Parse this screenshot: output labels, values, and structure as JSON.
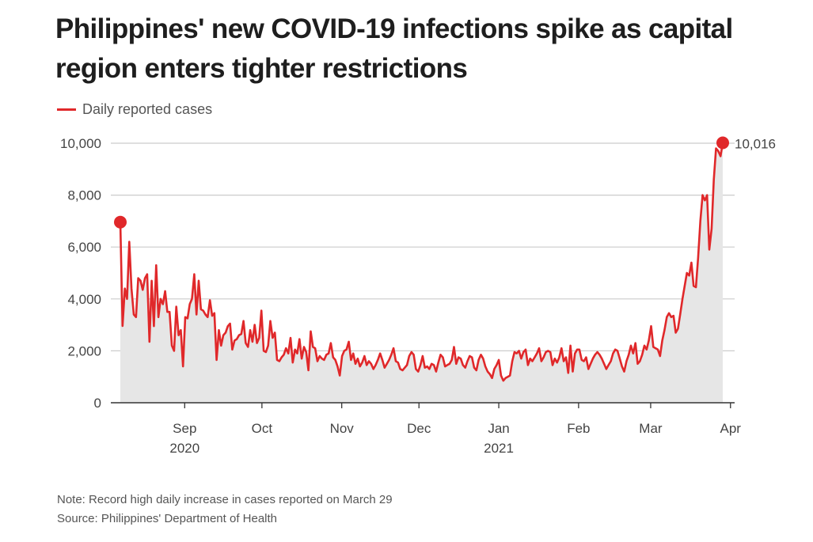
{
  "title": "Philippines' new COVID-19 infections spike as capital region enters tighter restrictions",
  "legend": {
    "label": "Daily reported cases",
    "color": "#e0282a"
  },
  "footer": {
    "note": "Note: Record high daily increase in cases reported on March 29",
    "source": "Source: Philippines' Department of Health"
  },
  "chart_data": {
    "type": "area",
    "title": "Philippines' new COVID-19 infections spike as capital region enters tighter restrictions",
    "xlabel": "",
    "ylabel": "",
    "x_start": "2020-08-07",
    "x_end": "2021-03-29",
    "ylim": [
      0,
      10000
    ],
    "yticks": [
      0,
      2000,
      4000,
      6000,
      8000,
      10000
    ],
    "ytick_labels": [
      "0",
      "2,000",
      "4,000",
      "6,000",
      "8,000",
      "10,000"
    ],
    "xticks": [
      {
        "date": "2020-09-01",
        "label": "Sep",
        "sublabel": "2020"
      },
      {
        "date": "2020-10-01",
        "label": "Oct",
        "sublabel": ""
      },
      {
        "date": "2020-11-01",
        "label": "Nov",
        "sublabel": ""
      },
      {
        "date": "2020-12-01",
        "label": "Dec",
        "sublabel": ""
      },
      {
        "date": "2021-01-01",
        "label": "Jan",
        "sublabel": "2021"
      },
      {
        "date": "2021-02-01",
        "label": "Feb",
        "sublabel": ""
      },
      {
        "date": "2021-03-01",
        "label": "Mar",
        "sublabel": ""
      },
      {
        "date": "2021-04-01",
        "label": "Apr",
        "sublabel": ""
      }
    ],
    "grid": true,
    "legend_position": "top-left",
    "colors": {
      "line": "#e0282a",
      "fill": "#e6e6e6",
      "grid": "#cccccc",
      "axis": "#333333"
    },
    "annotations": [
      {
        "date": "2020-08-07",
        "value": 6958,
        "marker": "dot",
        "label": ""
      },
      {
        "date": "2021-03-29",
        "value": 10016,
        "marker": "dot",
        "label": "10,016"
      }
    ],
    "series": [
      {
        "name": "Daily reported cases",
        "values": [
          6958,
          2960,
          4400,
          4000,
          6200,
          4400,
          3400,
          3300,
          4800,
          4700,
          4350,
          4800,
          4950,
          2350,
          4700,
          2950,
          5300,
          3300,
          4000,
          3800,
          4300,
          3500,
          3500,
          2200,
          2000,
          3700,
          2600,
          2800,
          1400,
          3300,
          3250,
          3800,
          4000,
          4950,
          3400,
          4700,
          3600,
          3550,
          3400,
          3300,
          3950,
          3350,
          3450,
          1650,
          2800,
          2200,
          2600,
          2700,
          2950,
          3050,
          2050,
          2400,
          2450,
          2600,
          2650,
          3150,
          2300,
          2150,
          2800,
          2350,
          3000,
          2300,
          2500,
          3550,
          2000,
          1950,
          2200,
          3150,
          2500,
          2700,
          1650,
          1600,
          1750,
          1850,
          2100,
          1900,
          2500,
          1550,
          2050,
          1900,
          2450,
          1700,
          2150,
          1950,
          1250,
          2750,
          2150,
          2100,
          1600,
          1800,
          1700,
          1650,
          1850,
          1900,
          2300,
          1750,
          1650,
          1400,
          1050,
          1800,
          2000,
          2050,
          2350,
          1650,
          1900,
          1500,
          1700,
          1400,
          1550,
          1800,
          1450,
          1600,
          1500,
          1300,
          1450,
          1650,
          1900,
          1650,
          1350,
          1500,
          1650,
          1850,
          2100,
          1600,
          1550,
          1300,
          1250,
          1350,
          1450,
          1800,
          1950,
          1850,
          1300,
          1200,
          1450,
          1800,
          1350,
          1400,
          1300,
          1500,
          1450,
          1200,
          1550,
          1850,
          1750,
          1400,
          1450,
          1500,
          1650,
          2150,
          1500,
          1750,
          1700,
          1450,
          1350,
          1600,
          1800,
          1750,
          1350,
          1250,
          1650,
          1850,
          1700,
          1400,
          1200,
          1100,
          950,
          1300,
          1450,
          1650,
          1050,
          850,
          950,
          1000,
          1050,
          1600,
          1950,
          1900,
          2000,
          1700,
          1950,
          2050,
          1450,
          1700,
          1600,
          1750,
          1900,
          2100,
          1600,
          1750,
          1950,
          2000,
          1950,
          1450,
          1700,
          1550,
          1750,
          2100,
          1600,
          1750,
          1150,
          2200,
          1200,
          1900,
          2050,
          2050,
          1650,
          1600,
          1750,
          1300,
          1500,
          1700,
          1850,
          1950,
          1850,
          1700,
          1500,
          1300,
          1450,
          1600,
          1900,
          2050,
          2000,
          1700,
          1400,
          1200,
          1600,
          1850,
          2200,
          1900,
          2300,
          1500,
          1600,
          1850,
          2200,
          2050,
          2400,
          2950,
          2150,
          2100,
          2050,
          1800,
          2400,
          2800,
          3300,
          3450,
          3300,
          3350,
          2700,
          2850,
          3400,
          4000,
          4500,
          5000,
          4900,
          5400,
          4500,
          4450,
          5600,
          7000,
          8000,
          7800,
          8000,
          5900,
          6700,
          8600,
          9800,
          9700,
          9500,
          10016
        ]
      }
    ]
  }
}
